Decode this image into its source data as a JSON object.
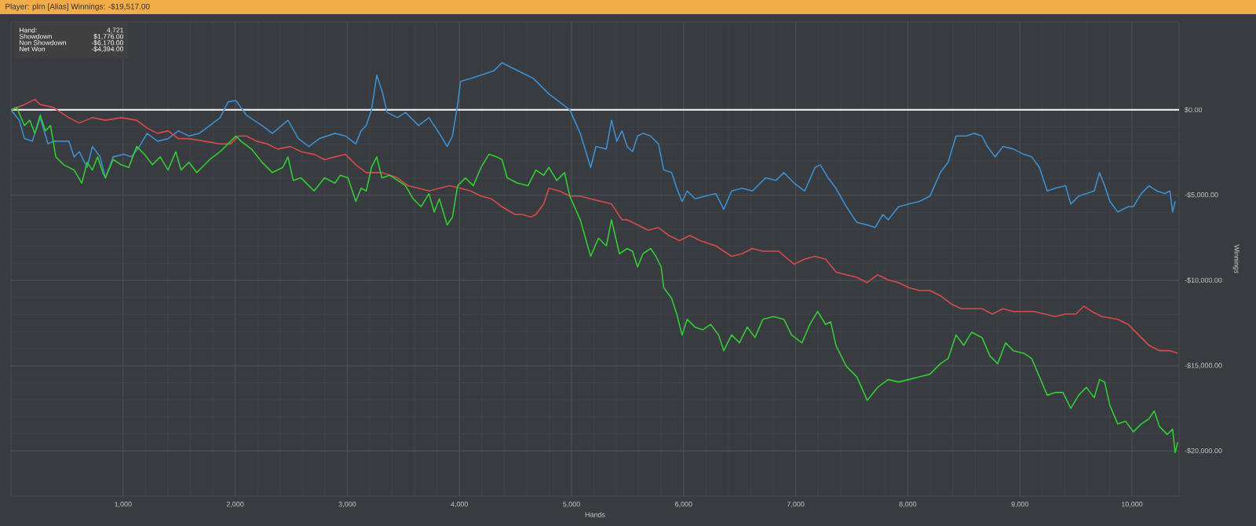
{
  "chart_data": {
    "type": "line",
    "title": "Player: plrn [Alias] Winnings: -$19,517.00",
    "xlabel": "Hands",
    "ylabel": "Winnings",
    "annotations": [
      "Hand:",
      "4,721",
      "Showdown",
      "$1,776.00",
      "Non Showdown",
      "-$6,170.00",
      "Net Won",
      "-$4,394.00"
    ],
    "xlim": [
      0,
      10420
    ],
    "ylim": [
      -22650,
      5150
    ],
    "xticks": [
      {
        "value": 1000,
        "label": "1,000"
      },
      {
        "value": 2000,
        "label": "2,000"
      },
      {
        "value": 3000,
        "label": "3,000"
      },
      {
        "value": 4000,
        "label": "4,000"
      },
      {
        "value": 5000,
        "label": "5,000"
      },
      {
        "value": 6000,
        "label": "6,000"
      },
      {
        "value": 7000,
        "label": "7,000"
      },
      {
        "value": 8000,
        "label": "8,000"
      },
      {
        "value": 9000,
        "label": "9,000"
      },
      {
        "value": 10000,
        "label": "10,000"
      }
    ],
    "yticks": [
      {
        "value": 0,
        "label": "$0.00"
      },
      {
        "value": -5000,
        "label": "-$5,000.00"
      },
      {
        "value": -10000,
        "label": "-$10,000.00"
      },
      {
        "value": -15000,
        "label": "-$15,000.00"
      },
      {
        "value": -20000,
        "label": "-$20,000.00"
      }
    ],
    "grid": true,
    "ref_lines": [
      {
        "axis": "y",
        "value": 0,
        "color": "#e6e6e6"
      }
    ],
    "series": [
      {
        "color": "#3d8fd0",
        "x": [
          0,
          74,
          120,
          190,
          260,
          330,
          376,
          516,
          563,
          609,
          679,
          726,
          795,
          842,
          912,
          1005,
          1075,
          1145,
          1214,
          1307,
          1401,
          1494,
          1587,
          1680,
          1773,
          1866,
          1936,
          2006,
          2099,
          2239,
          2331,
          2471,
          2564,
          2657,
          2750,
          2890,
          2983,
          3076,
          3123,
          3169,
          3216,
          3263,
          3310,
          3355,
          3449,
          3519,
          3635,
          3728,
          3821,
          3891,
          3938,
          3984,
          4010,
          4100,
          4310,
          4380,
          4520,
          4660,
          4800,
          4985,
          5078,
          5171,
          5218,
          5311,
          5357,
          5404,
          5450,
          5497,
          5544,
          5590,
          5637,
          5706,
          5776,
          5823,
          5893,
          5939,
          5986,
          6032,
          6102,
          6195,
          6288,
          6358,
          6428,
          6521,
          6614,
          6731,
          6824,
          6894,
          6987,
          7080,
          7173,
          7219,
          7289,
          7359,
          7452,
          7545,
          7638,
          7708,
          7778,
          7825,
          7918,
          8011,
          8104,
          8197,
          8290,
          8360,
          8430,
          8523,
          8592,
          8662,
          8709,
          8779,
          8849,
          8942,
          9035,
          9105,
          9174,
          9244,
          9314,
          9407,
          9454,
          9524,
          9593,
          9663,
          9710,
          9756,
          9803,
          9873,
          9966,
          10012,
          10082,
          10152,
          10222,
          10292,
          10338,
          10362,
          10385
        ],
        "values": [
          0,
          -610,
          -1690,
          -1840,
          -460,
          -2000,
          -1840,
          -1840,
          -2760,
          -2455,
          -3375,
          -2150,
          -2760,
          -3990,
          -2760,
          -2610,
          -2760,
          -2150,
          -1380,
          -1840,
          -1690,
          -1230,
          -1535,
          -1380,
          -920,
          -460,
          460,
          550,
          -310,
          -920,
          -1380,
          -610,
          -1690,
          -2150,
          -1690,
          -1380,
          -1535,
          -2000,
          -1230,
          -920,
          0,
          2030,
          1100,
          -150,
          -460,
          -150,
          -920,
          -460,
          -1380,
          -2150,
          -1535,
          310,
          1660,
          1840,
          2300,
          2760,
          2300,
          1840,
          920,
          0,
          -1380,
          -3375,
          -2150,
          -2300,
          -610,
          -1840,
          -1230,
          -2150,
          -2455,
          -1535,
          -1380,
          -1535,
          -2000,
          -3530,
          -3680,
          -4600,
          -5370,
          -4760,
          -5220,
          -5060,
          -4910,
          -5830,
          -4760,
          -4600,
          -4760,
          -3990,
          -4140,
          -3680,
          -4300,
          -4760,
          -3375,
          -3220,
          -3990,
          -4600,
          -5680,
          -6600,
          -6750,
          -6900,
          -6140,
          -6445,
          -5680,
          -5520,
          -5370,
          -5060,
          -3680,
          -3070,
          -1535,
          -1535,
          -1380,
          -1535,
          -2150,
          -2760,
          -2150,
          -2300,
          -2610,
          -2760,
          -3375,
          -4760,
          -4600,
          -4450,
          -5520,
          -5060,
          -4910,
          -4760,
          -3680,
          -4450,
          -5370,
          -5990,
          -5680,
          -5680,
          -4910,
          -4450,
          -4760,
          -4910,
          -4760,
          -5990,
          -5370
        ]
      },
      {
        "color": "#d94a4a",
        "x": [
          0,
          120,
          213,
          260,
          376,
          516,
          609,
          726,
          842,
          982,
          1121,
          1214,
          1307,
          1401,
          1494,
          1587,
          1726,
          1866,
          1959,
          2029,
          2099,
          2192,
          2285,
          2378,
          2494,
          2588,
          2704,
          2797,
          2890,
          2983,
          3076,
          3169,
          3309,
          3449,
          3542,
          3635,
          3728,
          3821,
          3914,
          4007,
          4100,
          4193,
          4286,
          4380,
          4496,
          4566,
          4636,
          4682,
          4752,
          4798,
          4892,
          4985,
          5078,
          5171,
          5264,
          5357,
          5450,
          5497,
          5590,
          5683,
          5776,
          5869,
          5963,
          6056,
          6149,
          6288,
          6428,
          6521,
          6614,
          6707,
          6847,
          6987,
          7080,
          7173,
          7266,
          7359,
          7452,
          7545,
          7638,
          7731,
          7825,
          7918,
          8011,
          8104,
          8197,
          8290,
          8383,
          8476,
          8569,
          8662,
          8755,
          8849,
          8942,
          9035,
          9128,
          9221,
          9314,
          9407,
          9500,
          9570,
          9640,
          9733,
          9873,
          9966,
          10059,
          10152,
          10245,
          10338,
          10408
        ],
        "values": [
          0,
          310,
          610,
          310,
          150,
          -460,
          -770,
          -460,
          -610,
          -460,
          -610,
          -1070,
          -1380,
          -1230,
          -1690,
          -1690,
          -1840,
          -2000,
          -2000,
          -1535,
          -1535,
          -1840,
          -2000,
          -2300,
          -2150,
          -2455,
          -2610,
          -2915,
          -2760,
          -2610,
          -3220,
          -3680,
          -3680,
          -3990,
          -4450,
          -4600,
          -4760,
          -4600,
          -4450,
          -4600,
          -4760,
          -5060,
          -5220,
          -5680,
          -6140,
          -6140,
          -6290,
          -6140,
          -5520,
          -4600,
          -4760,
          -5060,
          -5060,
          -5220,
          -5370,
          -5520,
          -6445,
          -6445,
          -6750,
          -7060,
          -6900,
          -7370,
          -7670,
          -7370,
          -7670,
          -7980,
          -8590,
          -8440,
          -8130,
          -8290,
          -8290,
          -9050,
          -8750,
          -8590,
          -8750,
          -9510,
          -9670,
          -9820,
          -10130,
          -9670,
          -9970,
          -10130,
          -10430,
          -10590,
          -10590,
          -10900,
          -11360,
          -11660,
          -11660,
          -11660,
          -11970,
          -11660,
          -11820,
          -11820,
          -11820,
          -11970,
          -12120,
          -11970,
          -11970,
          -11510,
          -11820,
          -12120,
          -12280,
          -12580,
          -13200,
          -13810,
          -14120,
          -14120,
          -14270
        ]
      },
      {
        "color": "#33cc33",
        "x": [
          0,
          50,
          120,
          167,
          213,
          260,
          307,
          353,
          400,
          470,
          563,
          632,
          679,
          726,
          772,
          819,
          842,
          912,
          982,
          1051,
          1121,
          1191,
          1261,
          1331,
          1401,
          1470,
          1517,
          1587,
          1657,
          1703,
          1773,
          1866,
          1959,
          2006,
          2052,
          2145,
          2239,
          2331,
          2425,
          2471,
          2518,
          2588,
          2657,
          2704,
          2797,
          2890,
          2937,
          3006,
          3076,
          3123,
          3169,
          3216,
          3262,
          3309,
          3379,
          3449,
          3519,
          3588,
          3658,
          3728,
          3775,
          3821,
          3891,
          3938,
          3984,
          4054,
          4124,
          4193,
          4263,
          4333,
          4380,
          4426,
          4519,
          4612,
          4682,
          4752,
          4798,
          4868,
          4938,
          4985,
          5078,
          5171,
          5241,
          5311,
          5357,
          5427,
          5497,
          5544,
          5590,
          5637,
          5706,
          5753,
          5800,
          5823,
          5893,
          5939,
          5986,
          6032,
          6102,
          6172,
          6242,
          6312,
          6358,
          6428,
          6498,
          6568,
          6637,
          6707,
          6800,
          6894,
          6963,
          7056,
          7126,
          7196,
          7266,
          7312,
          7359,
          7452,
          7545,
          7638,
          7731,
          7825,
          7918,
          8011,
          8104,
          8197,
          8290,
          8360,
          8430,
          8499,
          8569,
          8662,
          8732,
          8802,
          8872,
          8942,
          9035,
          9105,
          9174,
          9244,
          9314,
          9384,
          9454,
          9524,
          9593,
          9663,
          9710,
          9756,
          9803,
          9873,
          9943,
          10012,
          10082,
          10152,
          10198,
          10245,
          10315,
          10362,
          10385,
          10408
        ],
        "values": [
          0,
          150,
          -920,
          -610,
          -1380,
          -310,
          -1230,
          -920,
          -2760,
          -3220,
          -3530,
          -4300,
          -3070,
          -3530,
          -2760,
          -3680,
          -3990,
          -2915,
          -3220,
          -3375,
          -2150,
          -2610,
          -3220,
          -2760,
          -3530,
          -2455,
          -3530,
          -3070,
          -3680,
          -3375,
          -2915,
          -2455,
          -1840,
          -1535,
          -1840,
          -2300,
          -3070,
          -3680,
          -3375,
          -2760,
          -4140,
          -3990,
          -4450,
          -4760,
          -3990,
          -4300,
          -3835,
          -3990,
          -5370,
          -4600,
          -4760,
          -3375,
          -2760,
          -3990,
          -3835,
          -4140,
          -4450,
          -5220,
          -5680,
          -4910,
          -5990,
          -5220,
          -6750,
          -6290,
          -4450,
          -3990,
          -4450,
          -3375,
          -2610,
          -2760,
          -2915,
          -3990,
          -4300,
          -4450,
          -3530,
          -3835,
          -3375,
          -4140,
          -3680,
          -5060,
          -6445,
          -8590,
          -7520,
          -7980,
          -6445,
          -8440,
          -8130,
          -8290,
          -9210,
          -8440,
          -8130,
          -8590,
          -9210,
          -10430,
          -11050,
          -11970,
          -13200,
          -12280,
          -12740,
          -12890,
          -12580,
          -13200,
          -14120,
          -13200,
          -13660,
          -12740,
          -13350,
          -12280,
          -12120,
          -12280,
          -13200,
          -13660,
          -12580,
          -11820,
          -12580,
          -12430,
          -13810,
          -15040,
          -15650,
          -17030,
          -16270,
          -15810,
          -15960,
          -15810,
          -15650,
          -15500,
          -14890,
          -14580,
          -13200,
          -13810,
          -13040,
          -13350,
          -14430,
          -14890,
          -13660,
          -14120,
          -14270,
          -14580,
          -15650,
          -16730,
          -16570,
          -16570,
          -17500,
          -16730,
          -16270,
          -16880,
          -15810,
          -15960,
          -17340,
          -18420,
          -18260,
          -18880,
          -18420,
          -18110,
          -17650,
          -18570,
          -19030,
          -18720,
          -20100,
          -19490
        ]
      }
    ]
  }
}
